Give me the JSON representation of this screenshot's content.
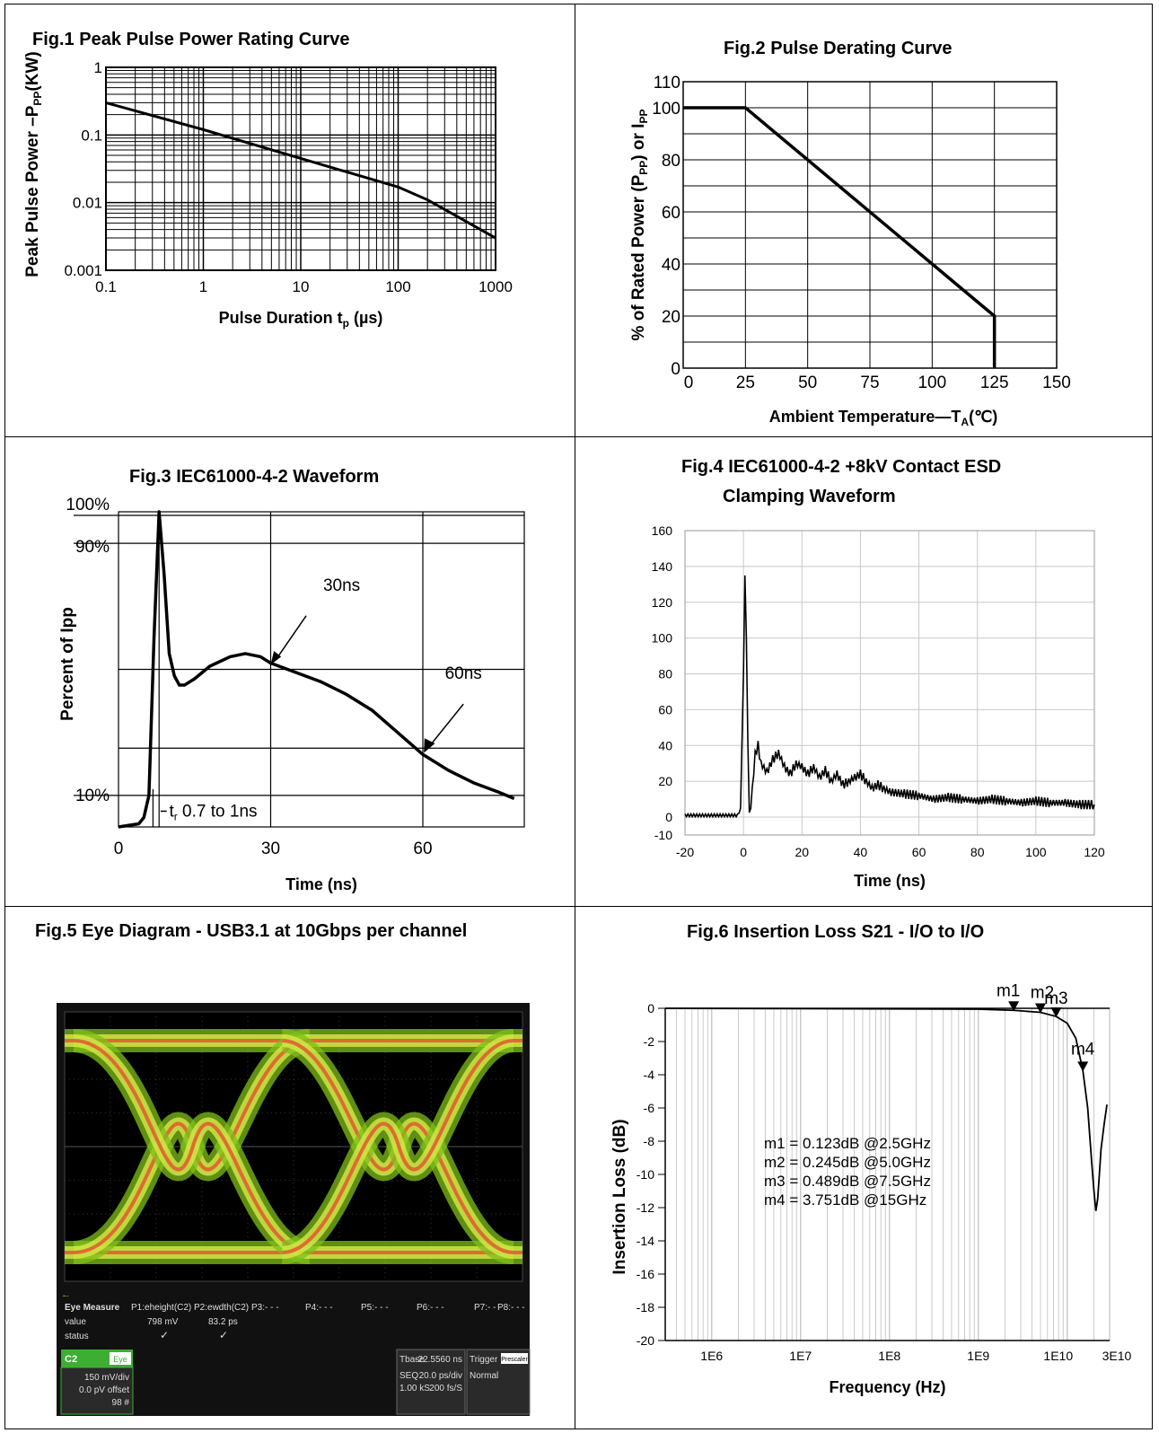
{
  "figures": {
    "fig1": {
      "title": "Fig.1 Peak Pulse Power Rating Curve"
    },
    "fig2": {
      "title": "Fig.2 Pulse Derating Curve"
    },
    "fig3": {
      "title": "Fig.3 IEC61000-4-2 Waveform"
    },
    "fig4": {
      "title_line1": "Fig.4 IEC61000-4-2 +8kV Contact ESD",
      "title_line2": "Clamping Waveform"
    },
    "fig5": {
      "title": "Fig.5 Eye Diagram - USB3.1 at 10Gbps per channel"
    },
    "fig6": {
      "title": "Fig.6 Insertion Loss S21 - I/O to I/O"
    }
  },
  "chart_data": [
    {
      "id": "fig1",
      "type": "line",
      "title": "Fig.1 Peak Pulse Power Rating Curve",
      "xlabel": "Pulse Duration tp (µs)",
      "ylabel": "Peak Pulse Power –PPP(KW)",
      "xscale": "log",
      "yscale": "log",
      "xlim": [
        0.1,
        1000
      ],
      "ylim": [
        0.001,
        1
      ],
      "xticks": [
        "0.1",
        "1",
        "10",
        "100",
        "1000"
      ],
      "yticks": [
        "0.001",
        "0.01",
        "0.1",
        "1"
      ],
      "grid": true,
      "series": [
        {
          "x": [
            0.1,
            1,
            10,
            100,
            200,
            1000
          ],
          "y": [
            0.3,
            0.12,
            0.045,
            0.017,
            0.011,
            0.003
          ]
        }
      ]
    },
    {
      "id": "fig2",
      "type": "line",
      "title": "Fig.2 Pulse Derating Curve",
      "xlabel": "Ambient Temperature—TA(℃)",
      "ylabel": "% of Rated Power (PPP) or IPP",
      "xlim": [
        0,
        150
      ],
      "ylim": [
        0,
        110
      ],
      "xticks": [
        "0",
        "25",
        "50",
        "75",
        "100",
        "125",
        "150"
      ],
      "yticks": [
        "0",
        "20",
        "40",
        "60",
        "80",
        "100",
        "110"
      ],
      "grid": true,
      "series": [
        {
          "x": [
            0,
            25,
            125,
            125
          ],
          "y": [
            100,
            100,
            20,
            0
          ]
        }
      ]
    },
    {
      "id": "fig3",
      "type": "line",
      "title": "Fig.3 IEC61000-4-2 Waveform",
      "xlabel": "Time  (ns)",
      "ylabel": "Percent of  Ipp",
      "xlim": [
        0,
        80
      ],
      "ylim": [
        0,
        100
      ],
      "xticks": [
        "0",
        "30",
        "60"
      ],
      "yticks": [
        "10%",
        "90%",
        "100%"
      ],
      "grid": true,
      "annotations": [
        "30ns",
        "60ns",
        "tr 0.7 to 1ns"
      ],
      "series": [
        {
          "x": [
            0,
            4,
            5,
            6,
            7,
            8,
            9,
            10,
            11,
            12,
            13,
            15,
            18,
            22,
            25,
            28,
            30,
            35,
            40,
            45,
            50,
            55,
            60,
            65,
            70,
            75,
            78
          ],
          "y": [
            0,
            1,
            3,
            10,
            60,
            100,
            80,
            55,
            48,
            45,
            45,
            47,
            51,
            54,
            55,
            54,
            52,
            49,
            46,
            42,
            37,
            30,
            23,
            18,
            14,
            11,
            9
          ]
        }
      ]
    },
    {
      "id": "fig4",
      "type": "line",
      "title": "Fig.4 IEC61000-4-2 +8kV Contact ESD Clamping Waveform",
      "xlabel": "Time (ns)",
      "ylabel": "",
      "xlim": [
        -20,
        120
      ],
      "ylim": [
        -10,
        160
      ],
      "xticks": [
        "-20",
        "0",
        "20",
        "40",
        "60",
        "80",
        "100",
        "120"
      ],
      "yticks": [
        "-10",
        "0",
        "20",
        "40",
        "60",
        "80",
        "100",
        "120",
        "140",
        "160"
      ],
      "grid": true,
      "series": [
        {
          "x": [
            -20,
            -10,
            -2,
            -1,
            0,
            0.5,
            1,
            1.5,
            2,
            3,
            4,
            5,
            6,
            8,
            10,
            12,
            14,
            16,
            18,
            20,
            22,
            24,
            26,
            28,
            30,
            32,
            34,
            36,
            38,
            40,
            42,
            44,
            46,
            48,
            50,
            55,
            60,
            65,
            70,
            75,
            80,
            85,
            90,
            95,
            100,
            105,
            110,
            115,
            120
          ],
          "y": [
            1,
            1,
            1,
            5,
            80,
            135,
            100,
            40,
            0,
            15,
            35,
            40,
            30,
            25,
            32,
            36,
            28,
            24,
            30,
            28,
            24,
            28,
            22,
            26,
            20,
            24,
            18,
            20,
            22,
            24,
            20,
            16,
            18,
            16,
            14,
            13,
            12,
            10,
            11,
            10,
            9,
            10,
            9,
            8,
            9,
            8,
            8,
            7,
            7
          ]
        }
      ]
    },
    {
      "id": "fig5",
      "type": "heatmap",
      "title": "Fig.5 Eye Diagram - USB3.1 at 10Gbps per channel",
      "measurements": {
        "header": [
          "Eye Measure",
          "P1:eheight(C2)",
          "P2:ewdth(C2)",
          "P3:- - -",
          "P4:- - -",
          "P5:- - -",
          "P6:- - -",
          "P7:- - -",
          "P8:- - -"
        ],
        "value_label": "value",
        "p1_value": "798 mV",
        "p2_value": "83.2 ps",
        "status_label": "status",
        "status_mark": "✓",
        "channel": "C2",
        "channel_mode": "Eye",
        "channel_lines": [
          "150 mV/div",
          "0.0 pV offset",
          "98 #"
        ],
        "tbase_label": "Tbase",
        "tbase_value": "-22.5560 ns",
        "seq_label": "SEQ",
        "seq_value": "20.0 ps/div",
        "ks_label": "1.00 kS",
        "ks_value": "200 fs/S",
        "trigger_label": "Trigger",
        "trigger_mode": "Prescaler",
        "trigger_value": "Normal"
      }
    },
    {
      "id": "fig6",
      "type": "line",
      "title": "Fig.6 Insertion Loss S21 - I/O to I/O",
      "xlabel": "Frequency (Hz)",
      "ylabel": "Insertion Loss (dB)",
      "xscale": "log",
      "xlim": [
        300000,
        30000000000
      ],
      "ylim": [
        -20,
        0
      ],
      "xticks": [
        "1E6",
        "1E7",
        "1E8",
        "1E9",
        "1E10",
        "3E10"
      ],
      "yticks": [
        "0",
        "-2",
        "-4",
        "-6",
        "-8",
        "-10",
        "-12",
        "-14",
        "-16",
        "-18",
        "-20"
      ],
      "grid": true,
      "markers": [
        {
          "name": "m1",
          "text": "m1   =   0.123dB   @2.5GHz",
          "x": 2500000000,
          "y": -0.123
        },
        {
          "name": "m2",
          "text": "m2   =   0.245dB   @5.0GHz",
          "x": 5000000000,
          "y": -0.245
        },
        {
          "name": "m3",
          "text": "m3   =   0.489dB   @7.5GHz",
          "x": 7500000000,
          "y": -0.489
        },
        {
          "name": "m4",
          "text": "m4 = 3.751dB @15GHz",
          "x": 15000000000,
          "y": -3.751
        }
      ],
      "series": [
        {
          "x": [
            1000000000,
            2500000000,
            5000000000,
            7500000000,
            10000000000,
            12500000000,
            15000000000,
            17000000000,
            19000000000,
            20000000000,
            21000000000,
            22000000000,
            23000000000,
            24000000000,
            26000000000,
            28000000000
          ],
          "y": [
            -0.05,
            -0.123,
            -0.245,
            -0.489,
            -0.9,
            -1.8,
            -3.751,
            -6,
            -9.5,
            -11,
            -12.2,
            -11.5,
            -10,
            -8.5,
            -7,
            -5.8
          ]
        }
      ]
    }
  ]
}
